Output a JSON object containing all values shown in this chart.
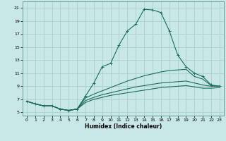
{
  "xlabel": "Humidex (Indice chaleur)",
  "background_color": "#c8e8e8",
  "grid_color": "#a8d0d0",
  "line_color": "#1a6b5a",
  "xlim": [
    -0.5,
    23.5
  ],
  "ylim": [
    4.5,
    22
  ],
  "yticks": [
    5,
    7,
    9,
    11,
    13,
    15,
    17,
    19,
    21
  ],
  "xticks": [
    0,
    1,
    2,
    3,
    4,
    5,
    6,
    7,
    8,
    9,
    10,
    11,
    12,
    13,
    14,
    15,
    16,
    17,
    18,
    19,
    20,
    21,
    22,
    23
  ],
  "lines": [
    {
      "x": [
        0,
        1,
        2,
        3,
        4,
        5,
        6,
        7,
        8,
        9,
        10,
        11,
        12,
        13,
        14,
        15,
        16,
        17,
        18,
        19,
        20,
        21,
        22,
        23
      ],
      "y": [
        6.7,
        6.3,
        6.0,
        6.0,
        5.5,
        5.3,
        5.5,
        7.5,
        9.5,
        12.0,
        12.5,
        15.3,
        17.5,
        18.5,
        20.8,
        20.7,
        20.3,
        17.5,
        13.8,
        12.0,
        11.0,
        10.5,
        9.2,
        9.0
      ],
      "marker": "+"
    },
    {
      "x": [
        0,
        1,
        2,
        3,
        4,
        5,
        6,
        7,
        8,
        9,
        10,
        11,
        12,
        13,
        14,
        15,
        16,
        17,
        18,
        19,
        20,
        21,
        22,
        23
      ],
      "y": [
        6.7,
        6.3,
        6.0,
        6.0,
        5.5,
        5.3,
        5.5,
        7.2,
        7.8,
        8.3,
        8.8,
        9.3,
        9.8,
        10.2,
        10.6,
        10.9,
        11.2,
        11.4,
        11.5,
        11.6,
        10.5,
        10.1,
        9.1,
        9.0
      ],
      "marker": null
    },
    {
      "x": [
        0,
        1,
        2,
        3,
        4,
        5,
        6,
        7,
        8,
        9,
        10,
        11,
        12,
        13,
        14,
        15,
        16,
        17,
        18,
        19,
        20,
        21,
        22,
        23
      ],
      "y": [
        6.7,
        6.3,
        6.0,
        6.0,
        5.5,
        5.3,
        5.5,
        6.8,
        7.3,
        7.7,
        8.0,
        8.3,
        8.6,
        8.9,
        9.1,
        9.3,
        9.5,
        9.6,
        9.7,
        9.8,
        9.5,
        9.2,
        9.0,
        9.0
      ],
      "marker": null
    },
    {
      "x": [
        0,
        1,
        2,
        3,
        4,
        5,
        6,
        7,
        8,
        9,
        10,
        11,
        12,
        13,
        14,
        15,
        16,
        17,
        18,
        19,
        20,
        21,
        22,
        23
      ],
      "y": [
        6.7,
        6.3,
        6.0,
        6.0,
        5.5,
        5.3,
        5.5,
        6.5,
        7.0,
        7.3,
        7.6,
        7.8,
        8.0,
        8.2,
        8.4,
        8.6,
        8.8,
        8.9,
        9.0,
        9.1,
        8.9,
        8.7,
        8.7,
        8.8
      ],
      "marker": null
    }
  ]
}
